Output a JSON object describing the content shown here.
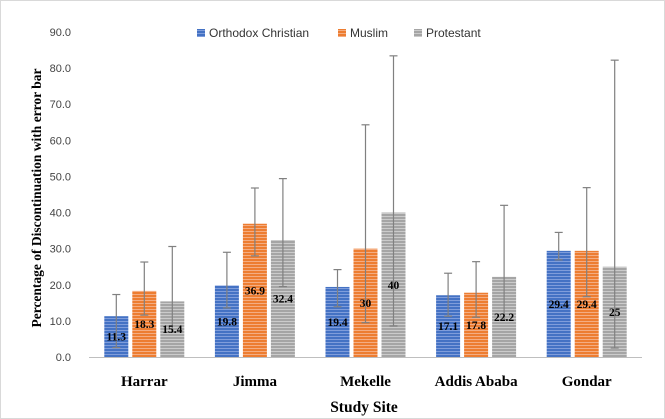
{
  "chart_data": {
    "type": "bar",
    "xlabel": "Study Site",
    "ylabel": "Percentage of Discontinuation with error bar",
    "ylim": [
      0,
      90
    ],
    "yticks": [
      "0.0",
      "10.0",
      "20.0",
      "30.0",
      "40.0",
      "50.0",
      "60.0",
      "70.0",
      "80.0",
      "90.0"
    ],
    "categories": [
      "Harrar",
      "Jimma",
      "Mekelle",
      "Addis Ababa",
      "Gondar"
    ],
    "legend_position": "top",
    "grid": false,
    "series": [
      {
        "name": "Orthodox Christian",
        "color": "#4472c4",
        "values": [
          11.3,
          19.8,
          19.4,
          17.1,
          29.4
        ],
        "labels": [
          "11.3",
          "19.8",
          "19.4",
          "17.1",
          "29.4"
        ],
        "error_low": [
          2.6,
          13.6,
          13.9,
          11.3,
          26.9
        ],
        "error_high": [
          17.3,
          29.0,
          24.2,
          23.2,
          34.5
        ]
      },
      {
        "name": "Muslim",
        "color": "#ed7d31",
        "values": [
          18.3,
          36.9,
          30,
          17.8,
          29.4
        ],
        "labels": [
          "18.3",
          "36.9",
          "30",
          "17.8",
          "29.4"
        ],
        "error_low": [
          11.6,
          28.0,
          9.5,
          11.0,
          16.7
        ],
        "error_high": [
          26.3,
          46.8,
          64.3,
          26.4,
          46.9
        ]
      },
      {
        "name": "Protestant",
        "color": "#a5a5a5",
        "values": [
          15.4,
          32.4,
          40,
          22.2,
          25
        ],
        "labels": [
          "15.4",
          "32.4",
          "40",
          "22.2",
          "25"
        ],
        "error_low": [
          6.9,
          19.5,
          8.6,
          10.4,
          2.5
        ],
        "error_high": [
          30.6,
          49.4,
          83.4,
          42.0,
          82.2
        ]
      }
    ]
  }
}
